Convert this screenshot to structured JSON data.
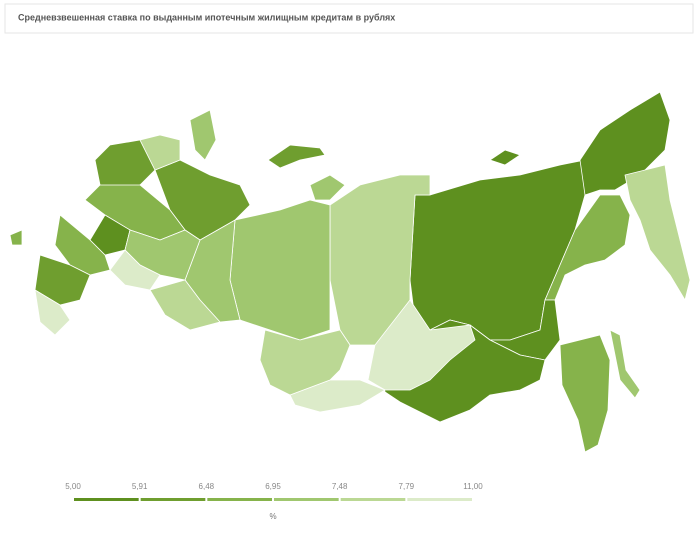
{
  "header": {
    "title": "Средневзвешенная ставка по выданным ипотечным жилищным кредитам в рублях"
  },
  "legend": {
    "breaks": [
      {
        "value": 5.0,
        "label": "5,00"
      },
      {
        "value": 5.91,
        "label": "5,91"
      },
      {
        "value": 6.48,
        "label": "6,48"
      },
      {
        "value": 6.95,
        "label": "6,95"
      },
      {
        "value": 7.48,
        "label": "7,48"
      },
      {
        "value": 7.79,
        "label": "7,79"
      },
      {
        "value": 11.0,
        "label": "11,00"
      }
    ],
    "colors": [
      "#5e901f",
      "#6f9e2f",
      "#86b34b",
      "#a0c76f",
      "#bbd894",
      "#dcebc9"
    ],
    "unit": "%"
  }
}
